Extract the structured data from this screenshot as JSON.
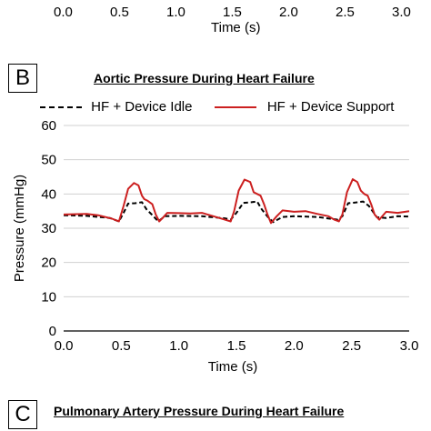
{
  "top_panel": {
    "x_ticks": [
      "0.0",
      "0.5",
      "1.0",
      "1.5",
      "2.0",
      "2.5",
      "3.0"
    ],
    "xlabel": "Time (s)"
  },
  "chart_data": [
    {
      "panel": "B",
      "type": "line",
      "title": "Aortic Pressure During Heart Failure",
      "xlabel": "Time (s)",
      "ylabel": "Pressure (mmHg)",
      "xlim": [
        0,
        3
      ],
      "ylim": [
        0,
        60
      ],
      "x_ticks": [
        "0.0",
        "0.5",
        "1.0",
        "1.5",
        "2.0",
        "2.5",
        "3.0"
      ],
      "y_ticks": [
        "0",
        "10",
        "20",
        "30",
        "40",
        "50",
        "60"
      ],
      "grid": "horizontal",
      "legend": "top",
      "series": [
        {
          "name": "HF + Device Idle",
          "color": "#000000",
          "style": "dashed",
          "x": [
            0.0,
            0.2,
            0.4,
            0.48,
            0.52,
            0.56,
            0.62,
            0.68,
            0.72,
            0.78,
            0.82,
            0.88,
            1.0,
            1.2,
            1.4,
            1.45,
            1.5,
            1.56,
            1.63,
            1.68,
            1.72,
            1.78,
            1.82,
            1.9,
            2.0,
            2.2,
            2.38,
            2.42,
            2.47,
            2.53,
            2.6,
            2.65,
            2.72,
            2.8,
            2.9,
            3.0
          ],
          "y": [
            33.8,
            33.6,
            33.0,
            32.0,
            34.5,
            37.2,
            37.3,
            37.6,
            35.5,
            33.5,
            32.0,
            33.5,
            33.6,
            33.5,
            32.9,
            32.5,
            34.5,
            37.4,
            37.6,
            37.8,
            35.5,
            33.0,
            31.8,
            33.3,
            33.5,
            33.3,
            32.5,
            33.5,
            37.3,
            37.5,
            37.8,
            36.5,
            33.2,
            33.0,
            33.5,
            33.4
          ]
        },
        {
          "name": "HF + Device Support",
          "color": "#cc2020",
          "style": "solid",
          "x": [
            0.0,
            0.2,
            0.3,
            0.42,
            0.48,
            0.52,
            0.56,
            0.61,
            0.65,
            0.68,
            0.7,
            0.73,
            0.77,
            0.8,
            0.83,
            0.86,
            0.9,
            1.0,
            1.1,
            1.2,
            1.3,
            1.4,
            1.45,
            1.48,
            1.52,
            1.57,
            1.62,
            1.65,
            1.68,
            1.71,
            1.74,
            1.77,
            1.8,
            1.85,
            1.9,
            2.0,
            2.1,
            2.2,
            2.3,
            2.35,
            2.39,
            2.42,
            2.46,
            2.51,
            2.55,
            2.58,
            2.61,
            2.64,
            2.67,
            2.7,
            2.74,
            2.8,
            2.9,
            3.0
          ],
          "y": [
            34.0,
            34.2,
            33.8,
            32.8,
            32.0,
            36.5,
            41.5,
            43.2,
            42.5,
            39.5,
            38.5,
            38.0,
            37.0,
            34.0,
            32.0,
            33.0,
            34.5,
            34.4,
            34.3,
            34.5,
            33.5,
            32.5,
            32.0,
            35.0,
            41.0,
            44.2,
            43.5,
            40.5,
            40.0,
            39.5,
            37.0,
            34.0,
            31.5,
            33.5,
            35.2,
            34.8,
            35.0,
            34.2,
            33.5,
            32.5,
            32.0,
            34.0,
            40.5,
            44.3,
            43.5,
            41.0,
            40.0,
            39.5,
            37.0,
            34.0,
            32.5,
            34.8,
            34.5,
            35.0
          ]
        }
      ]
    }
  ],
  "panel_c": {
    "label": "C",
    "title": "Pulmonary Artery Pressure During Heart Failure"
  }
}
